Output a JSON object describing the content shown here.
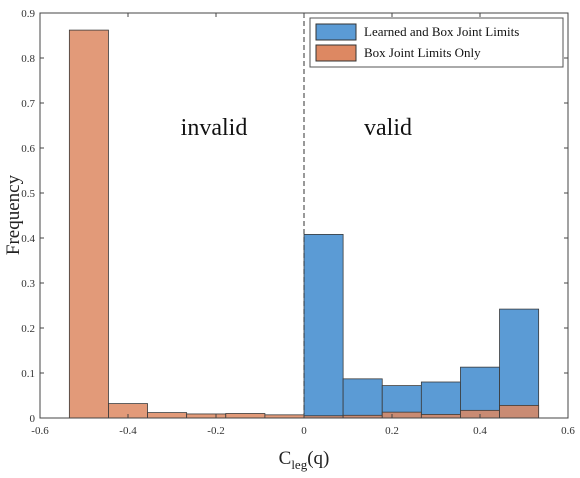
{
  "chart_data": {
    "type": "bar",
    "xlabel_main": "C",
    "xlabel_sub": "leg",
    "xlabel_tail": "(q)",
    "ylabel": "Frequency",
    "xlim": [
      -0.6,
      0.6
    ],
    "ylim": [
      0,
      0.9
    ],
    "xticks": [
      "-0.6",
      "-0.4",
      "-0.2",
      "0",
      "0.2",
      "0.4",
      "0.6"
    ],
    "yticks": [
      "0",
      "0.1",
      "0.2",
      "0.3",
      "0.4",
      "0.5",
      "0.6",
      "0.7",
      "0.8",
      "0.9"
    ],
    "divider_x": 0,
    "annotations": {
      "left": "invalid",
      "right": "valid"
    },
    "legend_position": "top-right",
    "bin_width": 0.0889,
    "series": [
      {
        "name": "Learned and Box Joint Limits",
        "color": "#5b9bd5",
        "bin_edges": [
          0,
          0.0889,
          0.1778,
          0.2667,
          0.3556,
          0.4444,
          0.5333
        ],
        "values": [
          0.408,
          0.087,
          0.072,
          0.08,
          0.113,
          0.242
        ]
      },
      {
        "name": "Box Joint Limits Only",
        "color": "#dd8862",
        "bin_edges": [
          -0.5333,
          -0.4444,
          -0.3556,
          -0.2667,
          -0.1778,
          -0.0889,
          0,
          0.0889,
          0.1778,
          0.2667,
          0.3556,
          0.4444,
          0.5333
        ],
        "values": [
          0.862,
          0.032,
          0.012,
          0.009,
          0.01,
          0.007,
          0.005,
          0.006,
          0.013,
          0.008,
          0.017,
          0.028
        ]
      }
    ]
  }
}
